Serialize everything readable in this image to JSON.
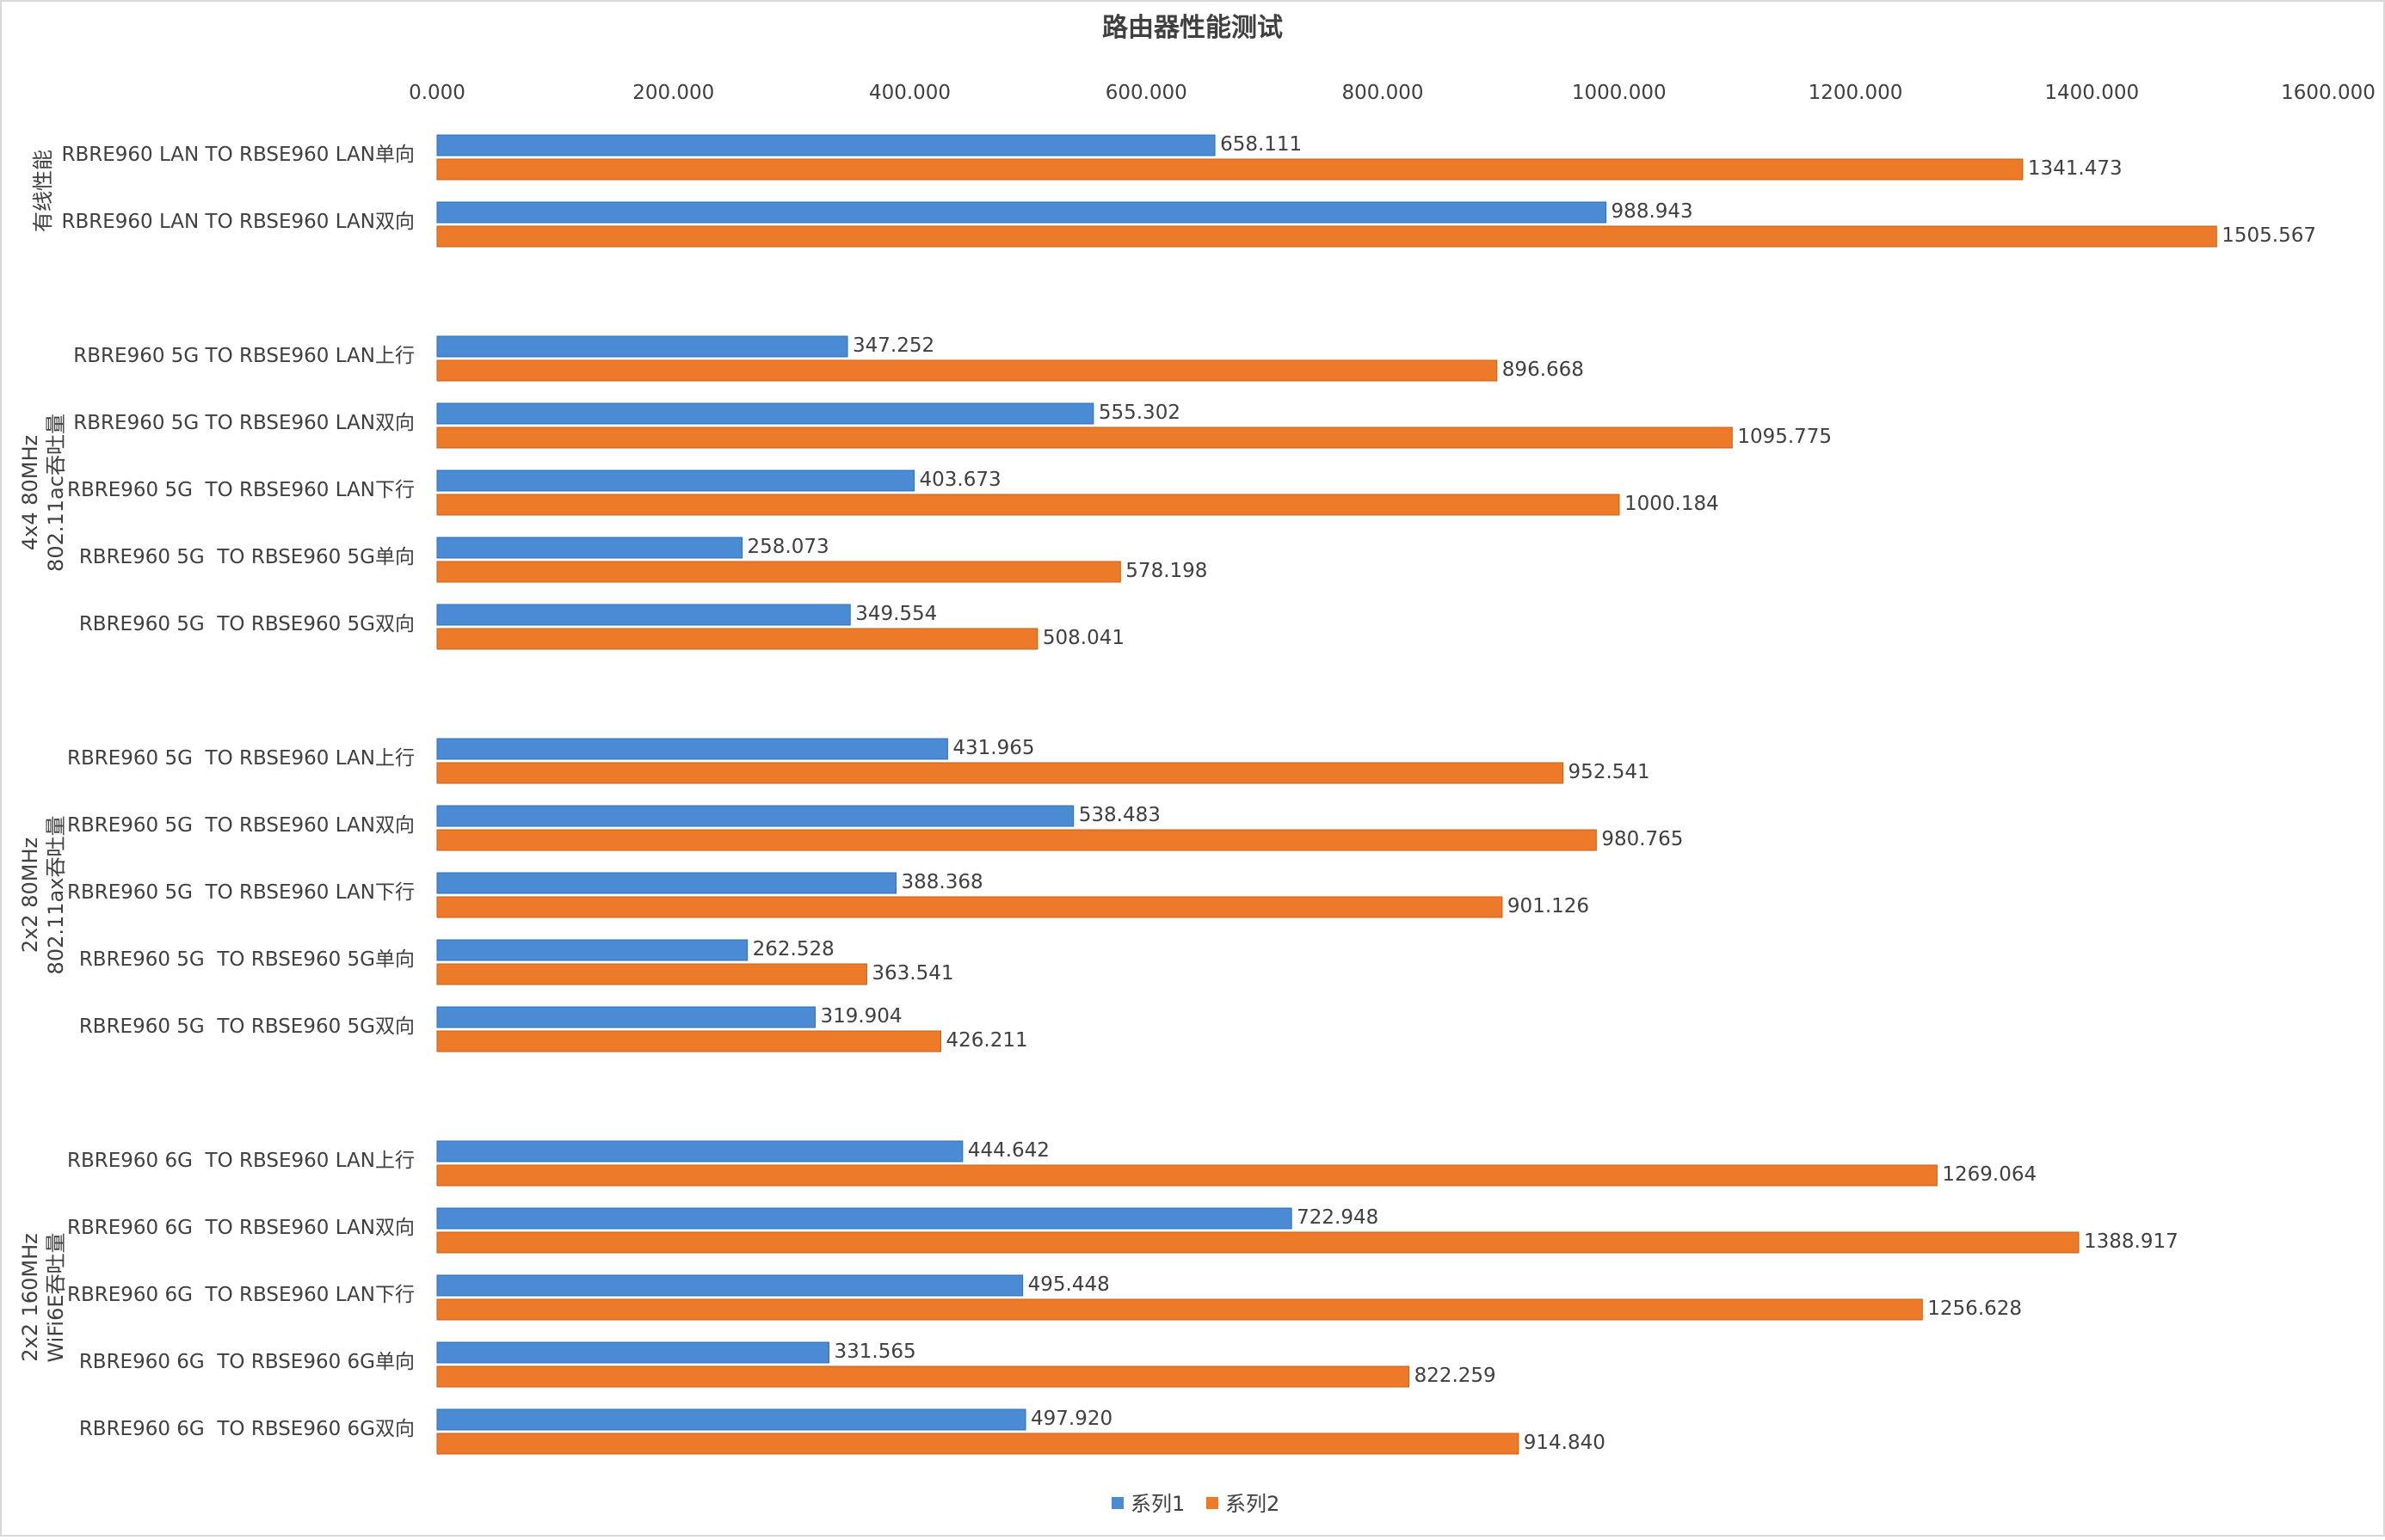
{
  "chart_data": {
    "type": "bar",
    "orientation": "horizontal",
    "title": "路由器性能测试",
    "xlim": [
      0,
      1600
    ],
    "x_ticks": [
      "0.000",
      "200.000",
      "400.000",
      "600.000",
      "800.000",
      "1000.000",
      "1200.000",
      "1400.000",
      "1600.000"
    ],
    "x_tick_values": [
      0,
      200,
      400,
      600,
      800,
      1000,
      1200,
      1400,
      1600
    ],
    "x_axis_position": "top",
    "grid": false,
    "legend_position": "bottom",
    "groups": [
      {
        "label_lines": [
          "有线性能"
        ],
        "categories": [
          "RBRE960 LAN TO RBSE960 LAN单向",
          "RBRE960 LAN TO RBSE960 LAN双向"
        ]
      },
      {
        "label_lines": [
          "4x4 80MHz",
          "802.11ac吞吐量"
        ],
        "categories": [
          "RBRE960 5G TO RBSE960 LAN上行",
          "RBRE960 5G TO RBSE960 LAN双向",
          "RBRE960 5G  TO RBSE960 LAN下行",
          "RBRE960 5G  TO RBSE960 5G单向",
          "RBRE960 5G  TO RBSE960 5G双向"
        ]
      },
      {
        "label_lines": [
          "2x2 80MHz",
          "802.11ax吞吐量"
        ],
        "categories": [
          "RBRE960 5G  TO RBSE960 LAN上行",
          "RBRE960 5G  TO RBSE960 LAN双向",
          "RBRE960 5G  TO RBSE960 LAN下行",
          "RBRE960 5G  TO RBSE960 5G单向",
          "RBRE960 5G  TO RBSE960 5G双向"
        ]
      },
      {
        "label_lines": [
          "2x2 160MHz",
          "WiFi6E吞吐量"
        ],
        "categories": [
          "RBRE960 6G  TO RBSE960 LAN上行",
          "RBRE960 6G  TO RBSE960 LAN双向",
          "RBRE960 6G  TO RBSE960 LAN下行",
          "RBRE960 6G  TO RBSE960 6G单向",
          "RBRE960 6G  TO RBSE960 6G双向"
        ]
      }
    ],
    "series": [
      {
        "name": "系列1",
        "color": "#4A8BD4",
        "values": [
          658.111,
          988.943,
          347.252,
          555.302,
          403.673,
          258.073,
          349.554,
          431.965,
          538.483,
          388.368,
          262.528,
          319.904,
          444.642,
          722.948,
          495.448,
          331.565,
          497.92
        ],
        "labels": [
          "658.111",
          "988.943",
          "347.252",
          "555.302",
          "403.673",
          "258.073",
          "349.554",
          "431.965",
          "538.483",
          "388.368",
          "262.528",
          "319.904",
          "444.642",
          "722.948",
          "495.448",
          "331.565",
          "497.920"
        ]
      },
      {
        "name": "系列2",
        "color": "#ED7A28",
        "values": [
          1341.473,
          1505.567,
          896.668,
          1095.775,
          1000.184,
          578.198,
          508.041,
          952.541,
          980.765,
          901.126,
          363.541,
          426.211,
          1269.064,
          1388.917,
          1256.628,
          822.259,
          914.84
        ],
        "labels": [
          "1341.473",
          "1505.567",
          "896.668",
          "1095.775",
          "1000.184",
          "578.198",
          "508.041",
          "952.541",
          "980.765",
          "901.126",
          "363.541",
          "426.211",
          "1269.064",
          "1388.917",
          "1256.628",
          "822.259",
          "914.840"
        ]
      }
    ]
  }
}
